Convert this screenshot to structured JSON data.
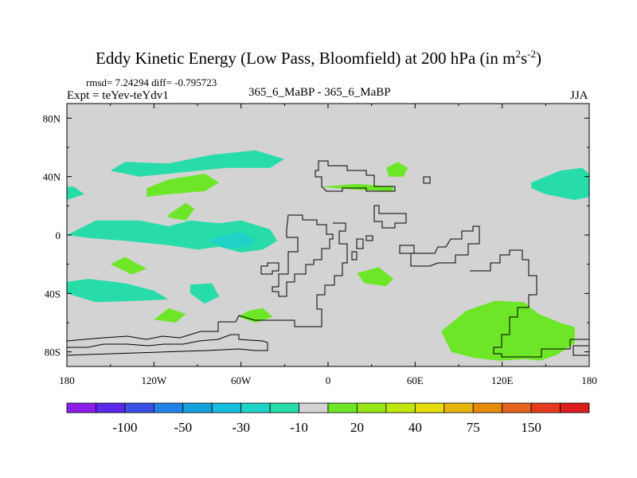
{
  "chart_data": {
    "type": "heatmap",
    "title": "Eddy Kinetic Energy (Low Pass, Bloomfield) at 200 hPa (in m",
    "title_exponent_1": "2",
    "title_middle": "s",
    "title_exponent_2": "-2",
    "title_end": ")",
    "stats": "rmsd= 7.24294 diff= -0.795723",
    "left_label": "Expt = teYev-teYdv1",
    "center_label": "365_6_MaBP - 365_6_MaBP",
    "right_label": "JJA",
    "x_range": [
      -180,
      180
    ],
    "y_range": [
      -90,
      90
    ],
    "x_ticks": [
      {
        "value": -180,
        "label": "180"
      },
      {
        "value": -120,
        "label": "120W"
      },
      {
        "value": -60,
        "label": "60W"
      },
      {
        "value": 0,
        "label": "0"
      },
      {
        "value": 60,
        "label": "60E"
      },
      {
        "value": 120,
        "label": "120E"
      },
      {
        "value": 180,
        "label": "180"
      }
    ],
    "y_ticks": [
      {
        "value": 80,
        "label": "80N"
      },
      {
        "value": 40,
        "label": "40N"
      },
      {
        "value": 0,
        "label": "0"
      },
      {
        "value": -40,
        "label": "40S"
      },
      {
        "value": -80,
        "label": "80S"
      }
    ],
    "background_color": "#d3d3d3",
    "colorbar": {
      "colors": [
        "#8c1eeb",
        "#5a28e6",
        "#3c50e6",
        "#1e82e6",
        "#14a0dc",
        "#14bedc",
        "#1ed2c8",
        "#28dcaa",
        "#d3d3d3",
        "#6ee628",
        "#96e614",
        "#bee60a",
        "#e6dc0a",
        "#e6b40a",
        "#e68c0a",
        "#e6641e",
        "#e63c1e",
        "#dc1e1e"
      ],
      "labels": [
        {
          "label": "-100",
          "index": 2
        },
        {
          "label": "-50",
          "index": 4
        },
        {
          "label": "-30",
          "index": 6
        },
        {
          "label": "-10",
          "index": 8
        },
        {
          "label": "20",
          "index": 10
        },
        {
          "label": "40",
          "index": 12
        },
        {
          "label": "75",
          "index": 14
        },
        {
          "label": "150",
          "index": 16
        }
      ]
    },
    "anomaly_regions": [
      {
        "name": "cyan-150W-25N",
        "color": "#28dcaa",
        "lon": [
          -180,
          -168,
          -175,
          -180
        ],
        "lat": [
          24,
          28,
          33,
          33
        ]
      },
      {
        "name": "cyan-north-40N",
        "color": "#28dcaa",
        "lon": [
          -150,
          -140,
          -110,
          -80,
          -50,
          -30,
          -40,
          -70,
          -100,
          -130,
          -150
        ],
        "lat": [
          44,
          50,
          49,
          55,
          58,
          52,
          46,
          46,
          43,
          40,
          44
        ]
      },
      {
        "name": "green-110W-35N",
        "color": "#6ee628",
        "lon": [
          -125,
          -110,
          -85,
          -75,
          -85,
          -110,
          -125
        ],
        "lat": [
          32,
          38,
          42,
          36,
          30,
          28,
          26
        ]
      },
      {
        "name": "green-105W-18N",
        "color": "#6ee628",
        "lon": [
          -110,
          -98,
          -92,
          -98,
          -110
        ],
        "lat": [
          14,
          22,
          18,
          10,
          12
        ]
      },
      {
        "name": "cyan-equator",
        "color": "#28dcaa",
        "lon": [
          -180,
          -160,
          -130,
          -110,
          -95,
          -75,
          -60,
          -40,
          -35,
          -45,
          -60,
          -75,
          -90,
          -110,
          -140,
          -165,
          -180
        ],
        "lat": [
          0,
          10,
          10,
          6,
          10,
          8,
          10,
          4,
          -4,
          -10,
          -12,
          -8,
          -10,
          -7,
          -4,
          -2,
          0
        ]
      },
      {
        "name": "cyan-5S-90W",
        "color": "#1ed2c8",
        "lon": [
          -80,
          -60,
          -50,
          -55,
          -70,
          -80
        ],
        "lat": [
          -2,
          2,
          -3,
          -8,
          -9,
          -5
        ]
      },
      {
        "name": "cyan-east-asia",
        "color": "#28dcaa",
        "lon": [
          140,
          160,
          175,
          180,
          180,
          170,
          150,
          140
        ],
        "lat": [
          36,
          44,
          46,
          42,
          26,
          24,
          28,
          32
        ]
      },
      {
        "name": "green-southern-indian",
        "color": "#6ee628",
        "lon": [
          78,
          95,
          115,
          135,
          145,
          160,
          170,
          170,
          158,
          146,
          136,
          118,
          100,
          85,
          78
        ],
        "lat": [
          -66,
          -52,
          -45,
          -46,
          -54,
          -60,
          -63,
          -74,
          -82,
          -86,
          -85,
          -86,
          -84,
          -80,
          -66
        ]
      },
      {
        "name": "green-europe",
        "color": "#6ee628",
        "lon": [
          40,
          48,
          55,
          52,
          42,
          40
        ],
        "lat": [
          46,
          50,
          46,
          40,
          40,
          46
        ]
      },
      {
        "name": "green-mediterranean",
        "color": "#6ee628",
        "lon": [
          -5,
          20,
          45,
          45,
          20,
          -5
        ],
        "lat": [
          33,
          35,
          33,
          30,
          31,
          33
        ]
      },
      {
        "name": "green-south-africa",
        "color": "#6ee628",
        "lon": [
          20,
          35,
          45,
          40,
          25,
          20
        ],
        "lat": [
          -26,
          -22,
          -30,
          -35,
          -33,
          -26
        ]
      },
      {
        "name": "green-west-pacific",
        "color": "#6ee628",
        "lon": [
          -150,
          -140,
          -125,
          -135,
          -150
        ],
        "lat": [
          -20,
          -15,
          -23,
          -27,
          -20
        ]
      },
      {
        "name": "cyan-south-pacific",
        "color": "#28dcaa",
        "lon": [
          -180,
          -165,
          -140,
          -120,
          -110,
          -130,
          -160,
          -180
        ],
        "lat": [
          -32,
          -30,
          -33,
          -38,
          -44,
          -45,
          -46,
          -40
        ]
      },
      {
        "name": "cyan-south-america",
        "color": "#28dcaa",
        "lon": [
          -95,
          -80,
          -75,
          -85,
          -95
        ],
        "lat": [
          -34,
          -33,
          -42,
          -47,
          -40
        ]
      },
      {
        "name": "green-chile",
        "color": "#6ee628",
        "lon": [
          -55,
          -45,
          -38,
          -50,
          -62,
          -55
        ],
        "lat": [
          -52,
          -50,
          -56,
          -60,
          -56,
          -52
        ]
      },
      {
        "name": "green-tasman",
        "color": "#6ee628",
        "lon": [
          -110,
          -98,
          -105,
          -120,
          -110
        ],
        "lat": [
          -50,
          -54,
          -60,
          -58,
          -50
        ]
      }
    ]
  }
}
